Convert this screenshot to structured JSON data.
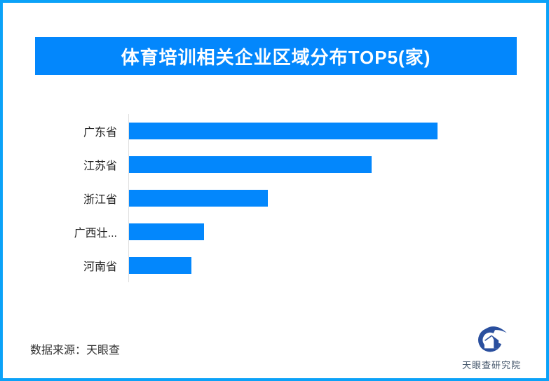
{
  "page": {
    "background_color": "#ffffff",
    "frame_border_color": "#0ba2f8"
  },
  "header": {
    "title": "体育培训相关企业区域分布TOP5(家)",
    "background_color": "#0387fc",
    "text_color": "#ffffff"
  },
  "chart_data": {
    "type": "bar",
    "orientation": "horizontal",
    "title": "体育培训相关企业区域分布TOP5(家)",
    "categories": [
      "广东省",
      "江苏省",
      "浙江省",
      "广西壮...",
      "河南省"
    ],
    "values": [
      440,
      346,
      198,
      107,
      89
    ],
    "value_labels_shown": false,
    "values_are_relative_bar_lengths_px": true,
    "bar_color": "#0387fc",
    "axis_line_color": "#e0e0e0",
    "label_color": "#222222",
    "xlabel": "",
    "ylabel": "",
    "grid": false,
    "legend": false
  },
  "footer": {
    "source_text": "数据来源：天眼查",
    "logo_text": "天眼查研究院",
    "logo_color": "#2a4f9e",
    "logo_text_color": "#44566b"
  }
}
